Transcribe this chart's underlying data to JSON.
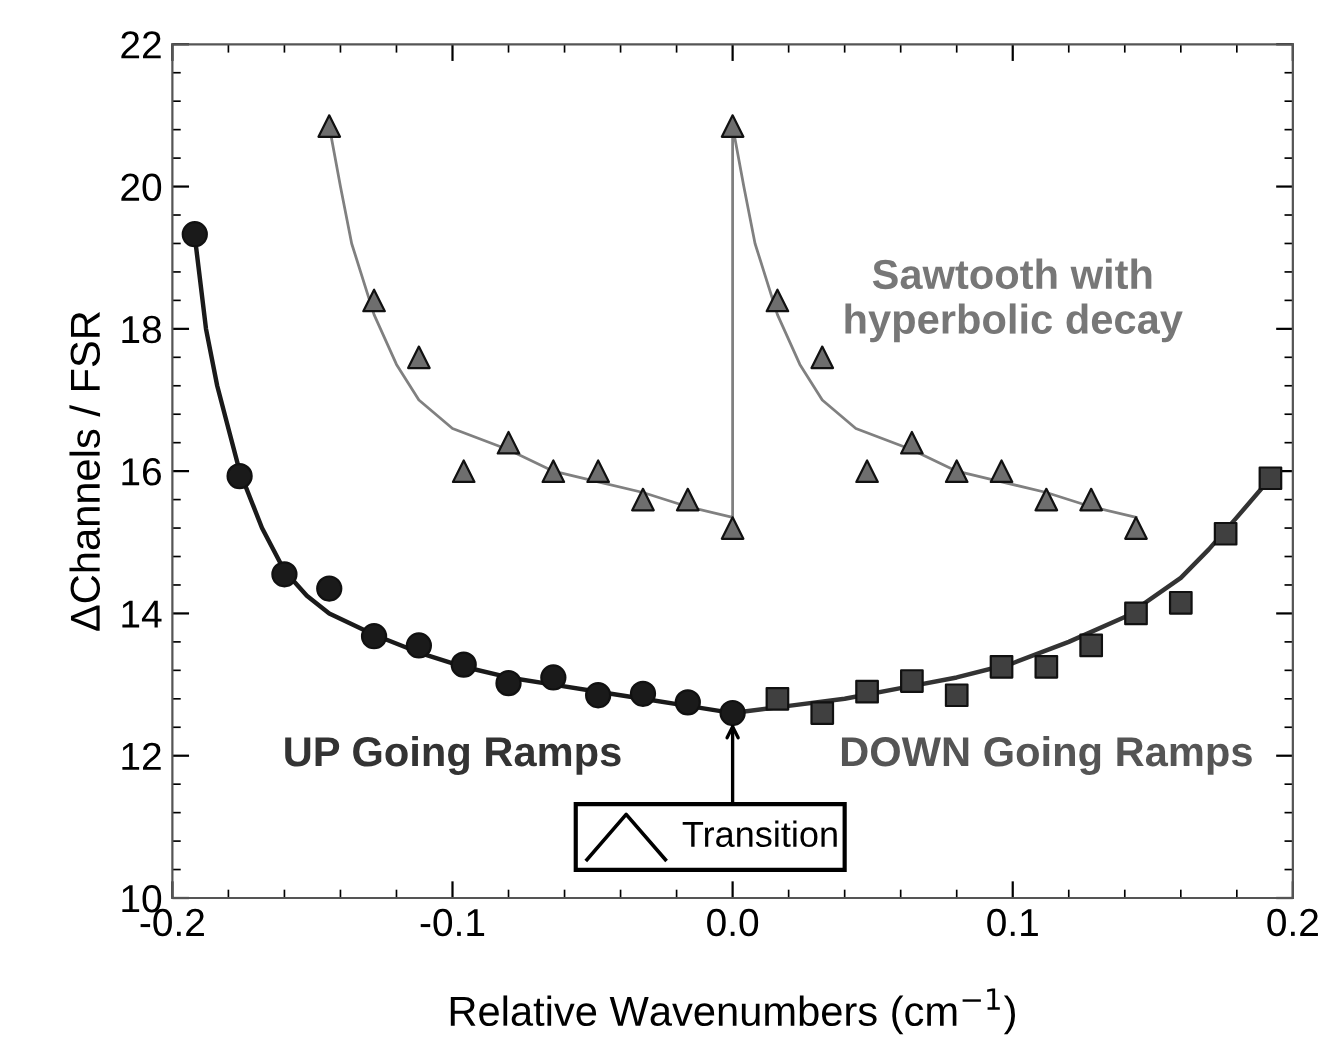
{
  "chart_data": {
    "type": "scatter",
    "xlabel": "Relative Wavenumbers (cm$^{−1}$)",
    "ylabel": "ΔChannels / FSR",
    "xlim": [
      -0.2,
      0.2
    ],
    "ylim": [
      10,
      22
    ],
    "xticks": [
      {
        "value": -0.2,
        "label": "-0.2"
      },
      {
        "value": -0.1,
        "label": "-0.1"
      },
      {
        "value": 0,
        "label": "0.0"
      },
      {
        "value": 0.1,
        "label": "0.1"
      },
      {
        "value": 0.2,
        "label": "0.2"
      }
    ],
    "yticks": [
      10,
      12,
      14,
      16,
      18,
      20,
      22
    ],
    "grid": false,
    "series": [
      {
        "type": "line",
        "color": "#808080",
        "marker": "none",
        "x": [
          -0.144,
          -0.14,
          -0.136,
          -0.128,
          -0.12,
          -0.112,
          -0.1,
          -0.08,
          -0.064,
          -0.048,
          -0.032,
          -0.016,
          0,
          0,
          0.004,
          0.008,
          0.016,
          0.024,
          0.032,
          0.044,
          0.064,
          0.08,
          0.096,
          0.112,
          0.128,
          0.144
        ],
        "values": [
          20.85,
          20.0,
          19.2,
          18.2,
          17.5,
          17.0,
          16.6,
          16.3,
          16.0,
          15.85,
          15.7,
          15.5,
          15.35,
          20.85,
          20.0,
          19.2,
          18.2,
          17.5,
          17.0,
          16.6,
          16.3,
          16.0,
          15.85,
          15.7,
          15.5,
          15.35
        ]
      },
      {
        "type": "line",
        "color": "#1a1a1a",
        "marker": "none",
        "x": [
          -0.192,
          -0.188,
          -0.184,
          -0.18,
          -0.176,
          -0.168,
          -0.16,
          -0.152,
          -0.144,
          -0.128,
          -0.112,
          -0.096,
          -0.08,
          -0.064,
          -0.048,
          -0.032,
          -0.016,
          0
        ],
        "values": [
          19.3,
          18.0,
          17.2,
          16.6,
          16.0,
          15.2,
          14.6,
          14.25,
          14.0,
          13.7,
          13.45,
          13.25,
          13.1,
          13.0,
          12.9,
          12.8,
          12.7,
          12.6
        ]
      },
      {
        "type": "line",
        "color": "#333333",
        "marker": "none",
        "x": [
          0,
          0.02,
          0.04,
          0.06,
          0.08,
          0.1,
          0.12,
          0.14,
          0.16,
          0.17,
          0.18,
          0.192
        ],
        "values": [
          12.6,
          12.7,
          12.8,
          12.95,
          13.1,
          13.3,
          13.6,
          13.95,
          14.5,
          14.9,
          15.35,
          15.9
        ]
      },
      {
        "color": "#6e6e6e",
        "marker": "triangle",
        "x": [
          -0.144,
          -0.128,
          -0.112,
          -0.096,
          -0.08,
          -0.064,
          -0.048,
          -0.032,
          -0.016,
          0,
          0,
          0.016,
          0.032,
          0.048,
          0.064,
          0.08,
          0.096,
          0.112,
          0.128,
          0.144
        ],
        "values": [
          20.85,
          18.4,
          17.6,
          16.0,
          16.4,
          16.0,
          16.0,
          15.6,
          15.6,
          15.2,
          20.85,
          18.4,
          17.6,
          16.0,
          16.4,
          16.0,
          16.0,
          15.6,
          15.6,
          15.2
        ]
      },
      {
        "color": "#1a1a1a",
        "marker": "circle",
        "x": [
          -0.192,
          -0.176,
          -0.16,
          -0.144,
          -0.128,
          -0.112,
          -0.096,
          -0.08,
          -0.064,
          -0.048,
          -0.032,
          -0.016,
          0
        ],
        "values": [
          19.33,
          15.93,
          14.55,
          14.35,
          13.68,
          13.55,
          13.28,
          13.02,
          13.1,
          12.85,
          12.87,
          12.75,
          12.6
        ]
      },
      {
        "color": "#404040",
        "marker": "square",
        "x": [
          0.016,
          0.032,
          0.048,
          0.064,
          0.08,
          0.096,
          0.112,
          0.128,
          0.144,
          0.16,
          0.176,
          0.192
        ],
        "values": [
          12.8,
          12.6,
          12.9,
          13.05,
          12.85,
          13.25,
          13.25,
          13.55,
          14.0,
          14.15,
          15.12,
          15.9
        ]
      }
    ],
    "annotations": [
      "Sawtooth with\nhyperbolic decay",
      "UP Going Ramps",
      "DOWN Going Ramps",
      "Transition"
    ]
  }
}
